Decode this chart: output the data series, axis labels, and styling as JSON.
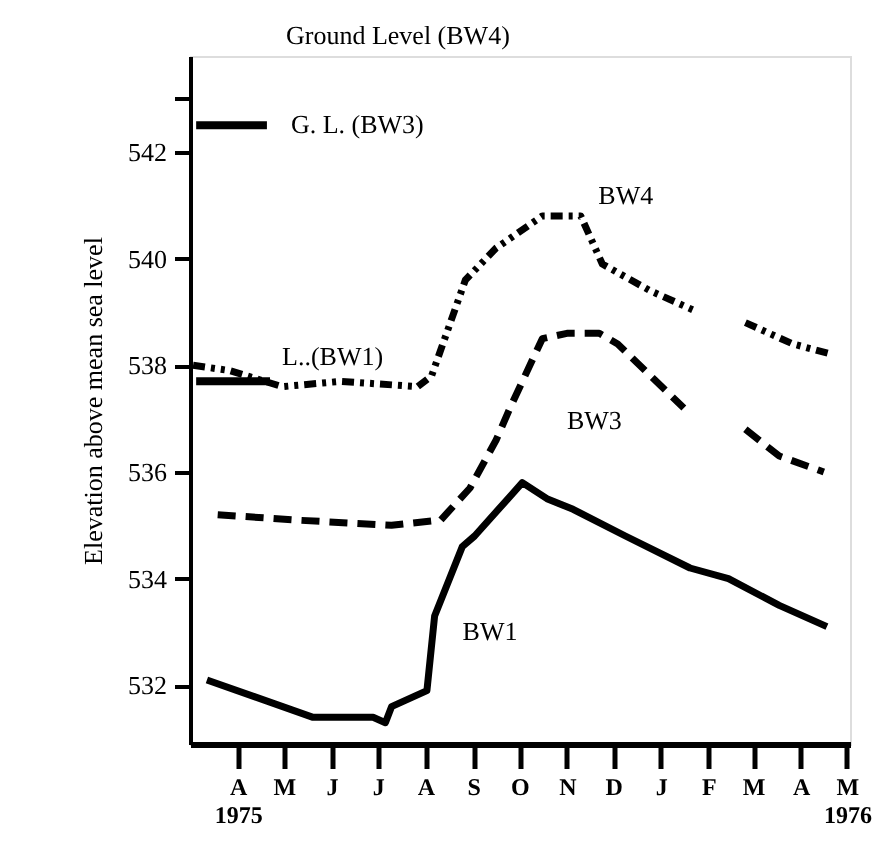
{
  "chart_data": {
    "type": "line",
    "ylabel": "Elevation above mean sea level",
    "xlim": [
      "1975-03-01",
      "1976-05-03"
    ],
    "ylim": [
      530.9,
      543.8
    ],
    "yticks": [
      532,
      534,
      536,
      538,
      540,
      542,
      {
        "value": 543,
        "label": null
      }
    ],
    "xticks": [
      {
        "value": "1975-04-01",
        "label": "A\n1975"
      },
      {
        "value": "1975-05-01",
        "label": "M"
      },
      {
        "value": "1975-06-01",
        "label": "J"
      },
      {
        "value": "1975-07-01",
        "label": "J"
      },
      {
        "value": "1975-08-01",
        "label": "A"
      },
      {
        "value": "1975-09-01",
        "label": "S"
      },
      {
        "value": "1975-10-01",
        "label": "O"
      },
      {
        "value": "1975-11-01",
        "label": "N"
      },
      {
        "value": "1975-12-01",
        "label": "D"
      },
      {
        "value": "1976-01-01",
        "label": "J"
      },
      {
        "value": "1976-02-01",
        "label": "F"
      },
      {
        "value": "1976-03-01",
        "label": "M"
      },
      {
        "value": "1976-04-01",
        "label": "A"
      },
      {
        "value": "1976-05-01",
        "label": "M\n1976"
      }
    ],
    "grid": false,
    "marker": "none",
    "series": [
      {
        "name": "BW1",
        "color": "#000000",
        "line_style": "solid",
        "x": [
          "1975-03-12",
          "1975-05-20",
          "1975-06-28",
          "1975-07-06",
          "1975-07-10",
          "1975-08-02",
          "1975-08-07",
          "1975-08-25",
          "1975-09-02",
          "1975-10-03",
          "1975-10-19",
          "1975-11-05",
          "1975-12-09",
          "1976-01-20",
          "1976-02-14",
          "1976-03-18",
          "1976-04-18"
        ],
        "values": [
          532.1,
          531.4,
          531.4,
          531.3,
          531.6,
          531.9,
          533.3,
          534.6,
          534.8,
          535.8,
          535.5,
          535.3,
          534.8,
          534.2,
          534.0,
          533.5,
          533.1
        ]
      },
      {
        "name": "BW3",
        "color": "#000000",
        "line_style": "dashed",
        "x": [
          "1975-03-19",
          "1975-05-08",
          "1975-07-10",
          "1975-08-11",
          "1975-08-30",
          "1975-09-16",
          "1975-09-25",
          "1975-10-16",
          "1975-11-01",
          "1975-11-22",
          "1975-12-04",
          "1976-01-16",
          "1976-02-05",
          "1976-02-25",
          "1976-03-18",
          "1976-04-16"
        ],
        "values": [
          535.2,
          535.1,
          535.0,
          535.1,
          535.7,
          536.6,
          537.2,
          538.5,
          538.6,
          538.6,
          538.4,
          537.2,
          null,
          536.8,
          536.3,
          536.0
        ]
      },
      {
        "name": "BW4",
        "color": "#000000",
        "line_style": "dotted",
        "x": [
          "1975-03-03",
          "1975-03-27",
          "1975-04-30",
          "1975-06-07",
          "1975-07-27",
          "1975-08-05",
          "1975-08-27",
          "1975-09-16",
          "1975-10-16",
          "1975-11-10",
          "1975-11-24",
          "1975-12-25",
          "1976-01-25",
          "1976-02-05",
          "1976-02-25",
          "1976-03-27",
          "1976-04-22"
        ],
        "values": [
          538.0,
          537.9,
          537.6,
          537.7,
          537.6,
          537.8,
          539.6,
          540.2,
          540.8,
          540.8,
          539.9,
          539.4,
          539.0,
          null,
          538.8,
          538.4,
          538.2
        ]
      },
      {
        "name": "G. L. (BW3)",
        "color": "#000000",
        "line_style": "solid",
        "x": [
          "1975-03-05",
          "1975-04-20"
        ],
        "values": [
          542.5,
          542.5
        ]
      },
      {
        "name": "L..(BW1)",
        "color": "#000000",
        "line_style": "solid",
        "x": [
          "1975-03-05",
          "1975-04-22"
        ],
        "values": [
          537.7,
          537.7
        ]
      }
    ],
    "annotations": [
      "Ground Level (BW4)"
    ]
  }
}
